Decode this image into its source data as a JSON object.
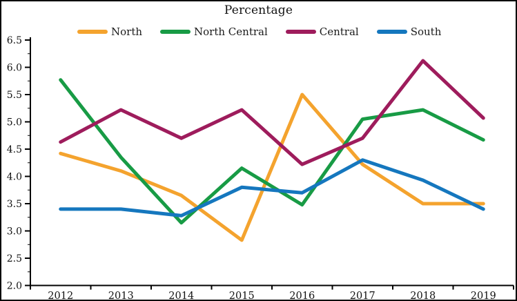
{
  "chart": {
    "title": "Percentage"
  },
  "colors": {
    "background": "#ffffff",
    "axis": "#000000",
    "text": "#111111",
    "north": "#F4A32E",
    "north_central": "#189B45",
    "central": "#9E1C5C",
    "south": "#1577BE"
  },
  "chart_data": {
    "type": "line",
    "title": "Percentage",
    "xlabel": "",
    "ylabel": "",
    "categories": [
      "2012",
      "2013",
      "2014",
      "2015",
      "2016",
      "2017",
      "2018",
      "2019"
    ],
    "series": [
      {
        "name": "North",
        "color": "#F4A32E",
        "values": [
          4.42,
          4.1,
          3.65,
          2.83,
          5.5,
          4.22,
          3.5,
          3.5
        ]
      },
      {
        "name": "North Central",
        "color": "#189B45",
        "values": [
          5.77,
          4.35,
          3.15,
          4.15,
          3.48,
          5.05,
          5.22,
          4.67
        ]
      },
      {
        "name": "Central",
        "color": "#9E1C5C",
        "values": [
          4.63,
          5.22,
          4.7,
          5.22,
          4.22,
          4.7,
          6.12,
          5.07
        ]
      },
      {
        "name": "South",
        "color": "#1577BE",
        "values": [
          3.4,
          3.4,
          3.28,
          3.8,
          3.7,
          4.3,
          3.93,
          3.4
        ]
      }
    ],
    "ylim": [
      2.0,
      6.5
    ],
    "y_tick_step": 0.5,
    "y_tick_labels": [
      "6.5",
      "6.0",
      "5.5",
      "5.0",
      "4.5",
      "4.0",
      "3.5",
      "3.0",
      "2.5",
      "2.0"
    ],
    "x_tick_labels": [
      "2012",
      "2013",
      "2014",
      "2015",
      "2016",
      "2017",
      "2018",
      "2019"
    ],
    "legend_position": "top",
    "grid": false
  }
}
